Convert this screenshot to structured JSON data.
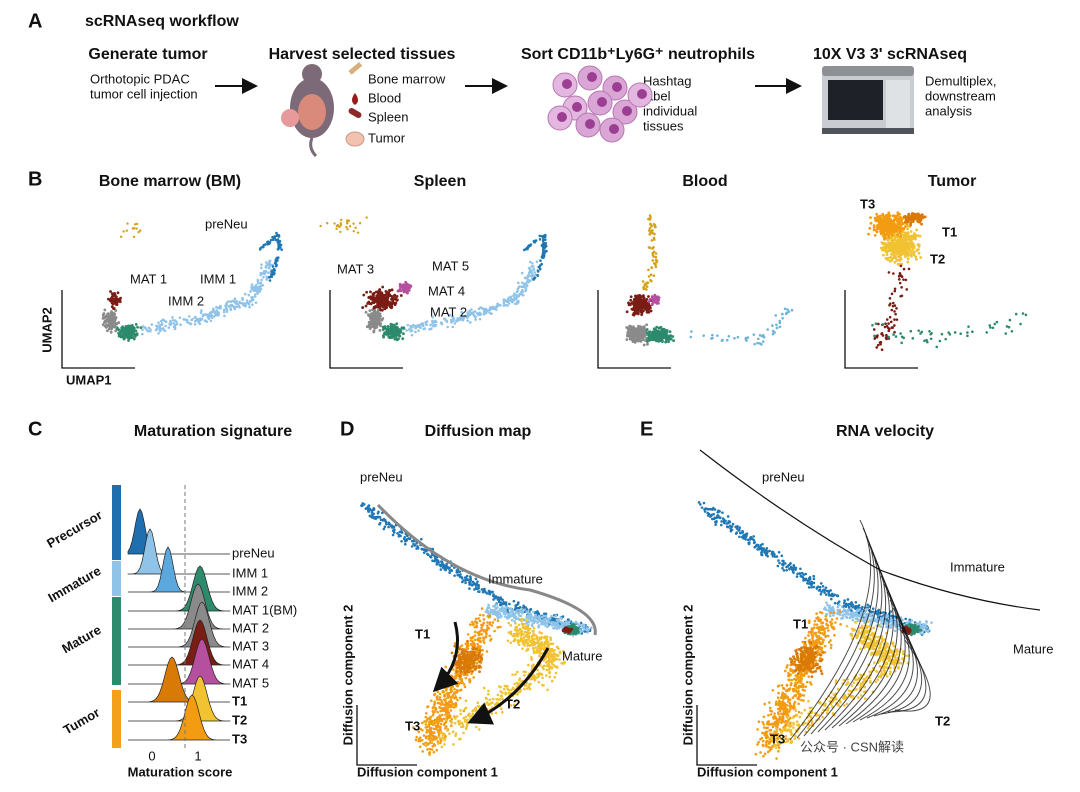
{
  "panel_a": {
    "label": "A",
    "title": "scRNAseq workflow",
    "steps": [
      {
        "title": "Generate tumor",
        "lines": [
          "Orthotopic PDAC",
          "tumor cell injection"
        ]
      },
      {
        "title": "Harvest selected tissues",
        "lines": [
          "Bone marrow",
          "Blood",
          "Spleen",
          "Tumor"
        ]
      },
      {
        "title": "Sort CD11b⁺Ly6G⁺ neutrophils",
        "lines": [
          "Hashtag",
          "label",
          "individual",
          "tissues"
        ]
      },
      {
        "title": "10X V3 3' scRNAseq",
        "lines": [
          "Demultiplex,",
          "downstream",
          "analysis"
        ]
      }
    ]
  },
  "panel_b": {
    "label": "B",
    "y_axis": "UMAP2",
    "x_axis": "UMAP1",
    "plots": [
      {
        "title": "Bone marrow (BM)",
        "clusters": [
          "preNeu",
          "IMM 1",
          "MAT 1",
          "IMM 2"
        ]
      },
      {
        "title": "Spleen",
        "clusters": [
          "MAT 3",
          "MAT 5",
          "MAT 4",
          "MAT 2"
        ]
      },
      {
        "title": "Blood",
        "clusters": []
      },
      {
        "title": "Tumor",
        "clusters": [
          "T3",
          "T1",
          "T2"
        ]
      }
    ]
  },
  "panel_c": {
    "label": "C",
    "title": "Maturation signature",
    "groups": [
      "Precursor",
      "Immature",
      "Mature",
      "Tumor"
    ],
    "rows": [
      "preNeu",
      "IMM 1",
      "IMM 2",
      "MAT 1(BM)",
      "MAT 2",
      "MAT 3",
      "MAT 4",
      "MAT 5",
      "T1",
      "T2",
      "T3"
    ],
    "ticks": [
      "0",
      "1"
    ],
    "x_axis": "Maturation score"
  },
  "panel_d": {
    "label": "D",
    "title": "Diffusion map",
    "labels": [
      "preNeu",
      "Immature",
      "T1",
      "Mature",
      "T2",
      "T3"
    ],
    "y_axis": "Diffusion component 2",
    "x_axis": "Diffusion component 1"
  },
  "panel_e": {
    "label": "E",
    "title": "RNA velocity",
    "labels": [
      "preNeu",
      "Immature",
      "T1",
      "Mature",
      "T2",
      "T3"
    ],
    "y_axis": "Diffusion component 2",
    "x_axis": "Diffusion component 1"
  },
  "watermark": "公众号 · CSN解读"
}
